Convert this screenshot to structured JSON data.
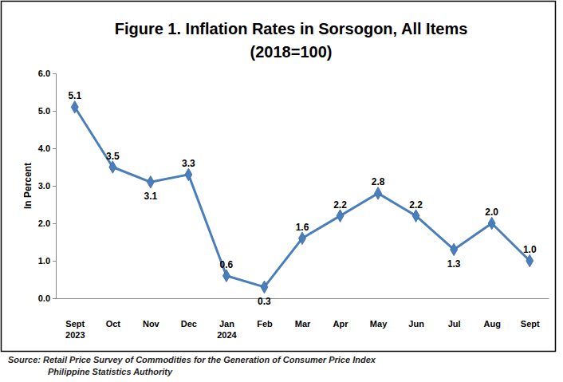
{
  "chart_data": {
    "type": "line",
    "title": "Figure 1. Inflation Rates in Sorsogon, All Items",
    "subtitle": "(2018=100)",
    "y_label": "In Percent",
    "source": [
      "Source: Retail Price Survey of Commodities for the Generation of Consumer Price Index",
      "Philippine Statistics Authority"
    ],
    "categories": [
      "Sept 2023",
      "Oct",
      "Nov",
      "Dec",
      "Jan 2024",
      "Feb",
      "Mar",
      "Apr",
      "May",
      "Jun",
      "Jul",
      "Aug",
      "Sept"
    ],
    "values": [
      5.1,
      3.5,
      3.1,
      3.3,
      0.6,
      0.3,
      1.6,
      2.2,
      2.8,
      2.2,
      1.3,
      2.0,
      1.0
    ],
    "value_labels": [
      "5.1",
      "3.5",
      "3.1",
      "3.3",
      "0.6",
      "0.3",
      "1.6",
      "2.2",
      "2.8",
      "2.2",
      "1.3",
      "2.0",
      "1.0"
    ],
    "color": "#4a7ebb",
    "marker": "diamond",
    "line_style": "solid",
    "data_labels": true,
    "grid": false,
    "ylim": [
      0,
      6
    ],
    "yticks": [
      {
        "value": 0,
        "label": "0.0"
      },
      {
        "value": 1,
        "label": "1.0"
      },
      {
        "value": 2,
        "label": "2.0"
      },
      {
        "value": 3,
        "label": "3.0"
      },
      {
        "value": 4,
        "label": "4.0"
      },
      {
        "value": 5,
        "label": "5.0"
      },
      {
        "value": 6,
        "label": "6.0"
      }
    ]
  }
}
